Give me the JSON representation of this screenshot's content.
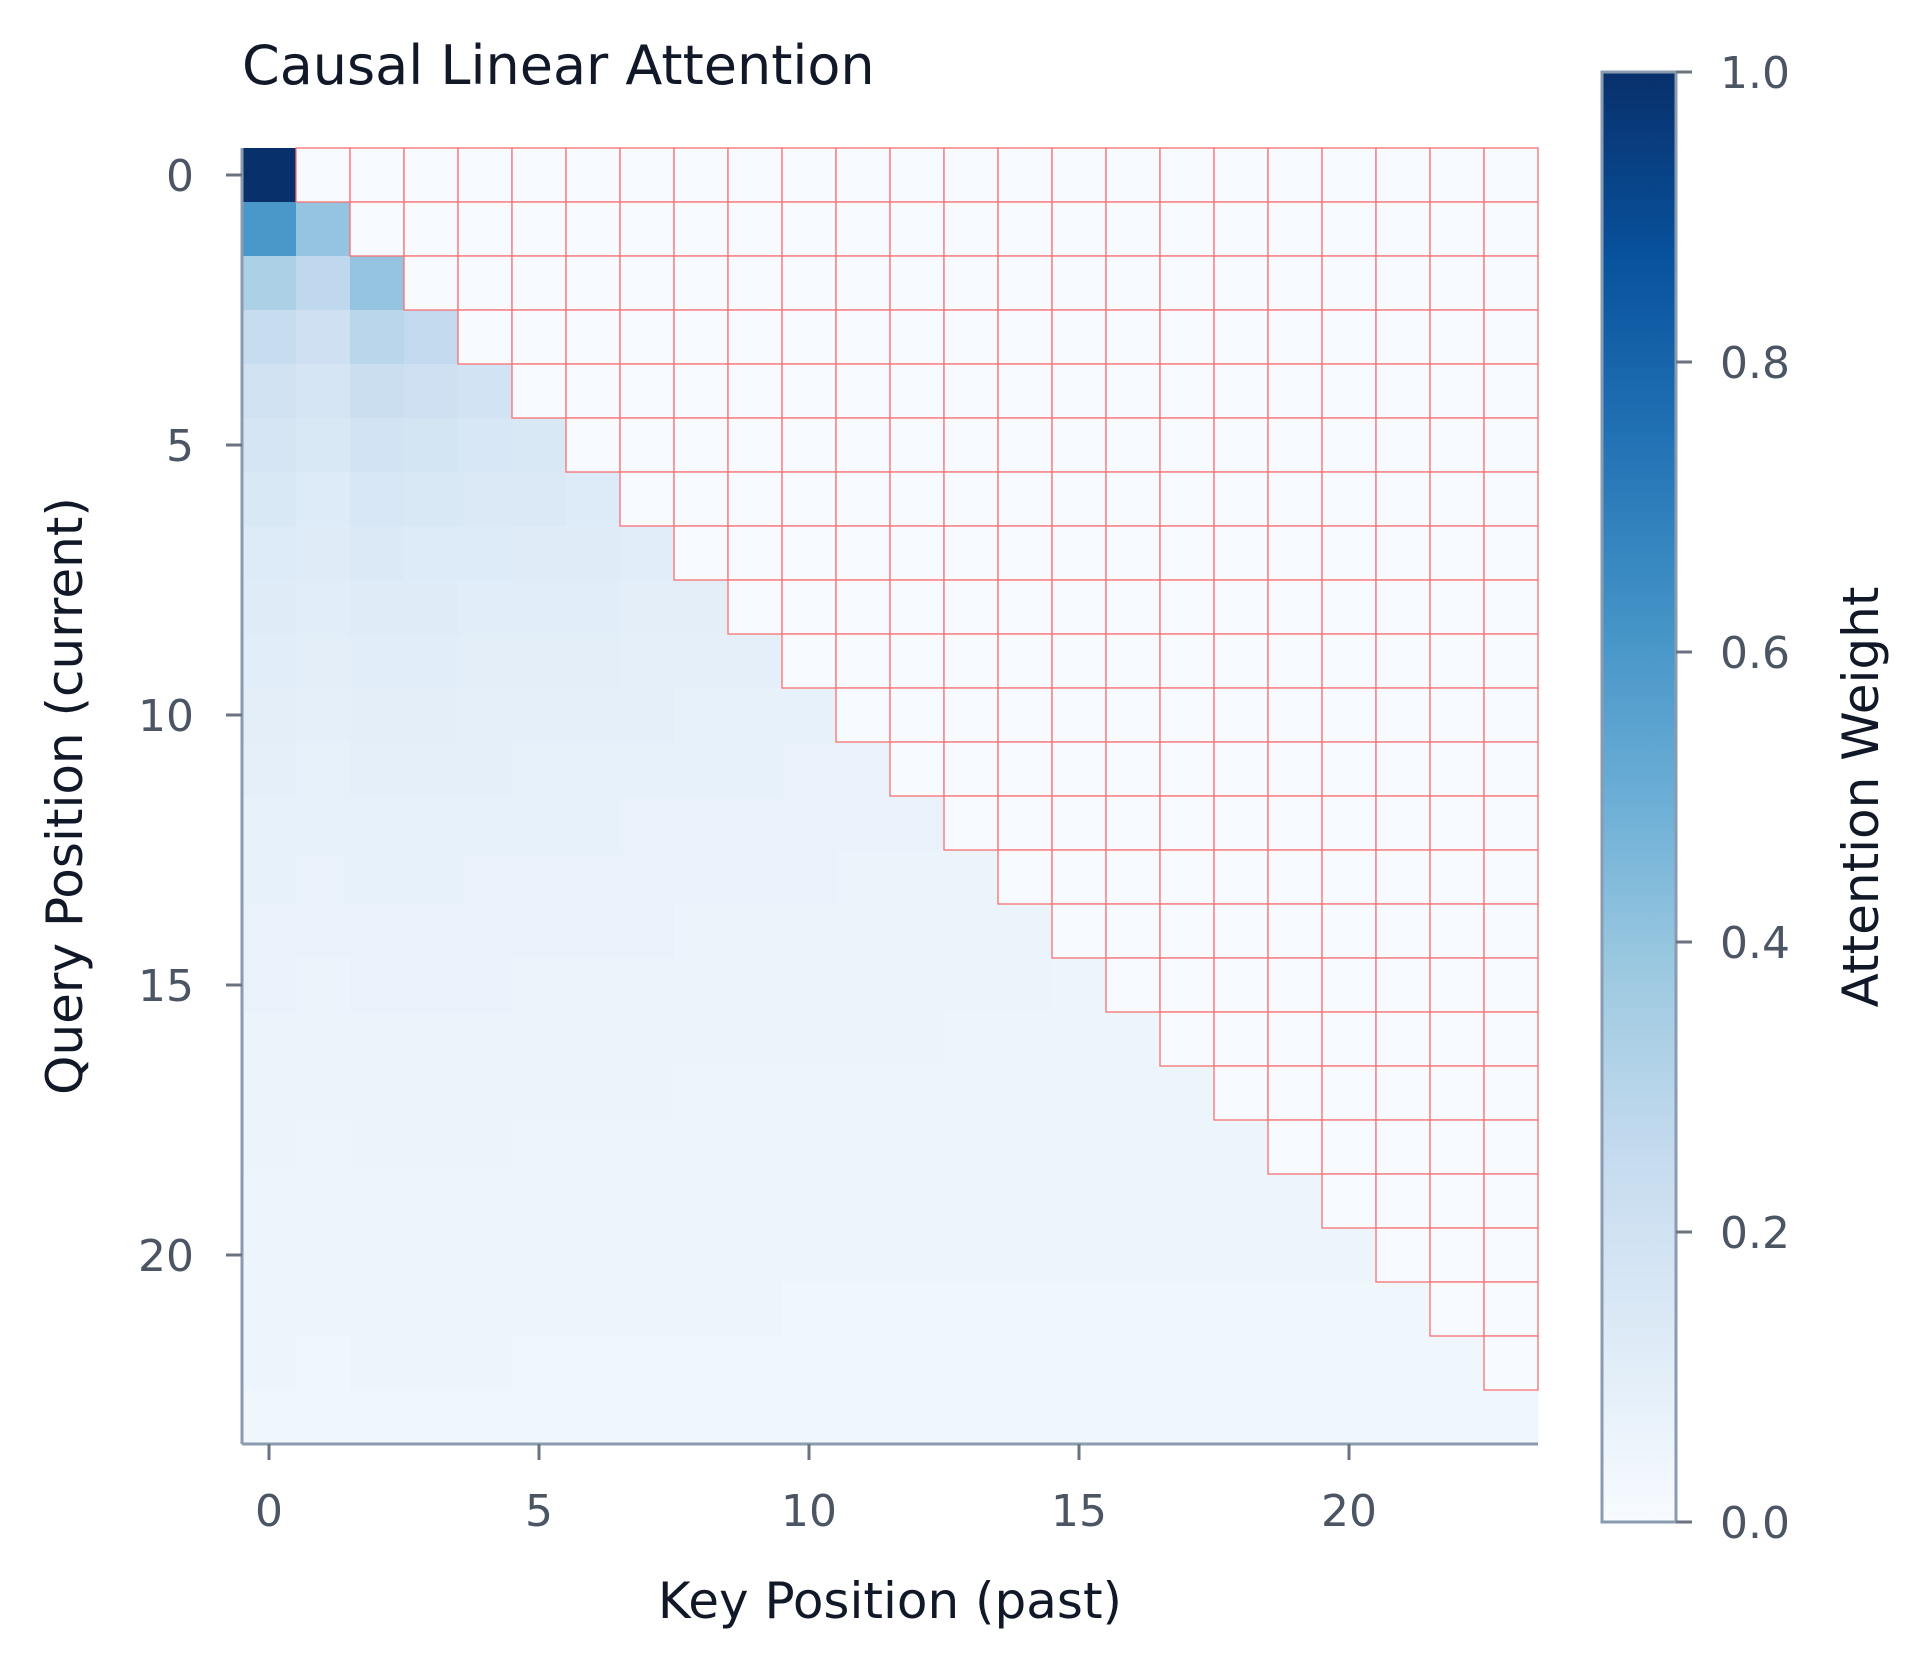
{
  "chart_data": {
    "type": "heatmap",
    "title": "Causal Linear Attention",
    "xlabel": "Key Position (past)",
    "ylabel": "Query Position (current)",
    "colorbar_label": "Attention Weight",
    "size": 24,
    "x_ticks": [
      0,
      5,
      10,
      15,
      20
    ],
    "y_ticks": [
      0,
      5,
      10,
      15,
      20
    ],
    "color_range": [
      0.0,
      1.0
    ],
    "colorbar_ticks": [
      "0.0",
      "0.2",
      "0.4",
      "0.6",
      "0.8",
      "1.0"
    ],
    "colormap": "Blues",
    "mask": "upper triangle (k > q) masked, outlined in red",
    "mask_color": "#f87171",
    "rows": [
      [
        1.0
      ],
      [
        0.6,
        0.4
      ],
      [
        0.33,
        0.27,
        0.4
      ],
      [
        0.24,
        0.21,
        0.29,
        0.26
      ],
      [
        0.2,
        0.17,
        0.23,
        0.21,
        0.19
      ],
      [
        0.17,
        0.15,
        0.19,
        0.18,
        0.16,
        0.15
      ],
      [
        0.15,
        0.13,
        0.16,
        0.15,
        0.14,
        0.14,
        0.13
      ],
      [
        0.13,
        0.12,
        0.14,
        0.13,
        0.13,
        0.12,
        0.12,
        0.11
      ],
      [
        0.12,
        0.11,
        0.12,
        0.12,
        0.11,
        0.11,
        0.11,
        0.1,
        0.1
      ],
      [
        0.11,
        0.1,
        0.11,
        0.11,
        0.1,
        0.1,
        0.1,
        0.09,
        0.09,
        0.09
      ],
      [
        0.1,
        0.09,
        0.1,
        0.1,
        0.09,
        0.09,
        0.09,
        0.09,
        0.08,
        0.08,
        0.08
      ],
      [
        0.09,
        0.08,
        0.09,
        0.09,
        0.09,
        0.08,
        0.08,
        0.08,
        0.08,
        0.08,
        0.07,
        0.07
      ],
      [
        0.08,
        0.08,
        0.08,
        0.08,
        0.08,
        0.08,
        0.08,
        0.07,
        0.07,
        0.07,
        0.07,
        0.07,
        0.07
      ],
      [
        0.08,
        0.07,
        0.08,
        0.08,
        0.07,
        0.07,
        0.07,
        0.07,
        0.07,
        0.07,
        0.07,
        0.06,
        0.06,
        0.06
      ],
      [
        0.07,
        0.07,
        0.07,
        0.07,
        0.07,
        0.07,
        0.07,
        0.07,
        0.06,
        0.06,
        0.06,
        0.06,
        0.06,
        0.06,
        0.06
      ],
      [
        0.07,
        0.06,
        0.07,
        0.07,
        0.07,
        0.06,
        0.06,
        0.06,
        0.06,
        0.06,
        0.06,
        0.06,
        0.06,
        0.06,
        0.06,
        0.05
      ],
      [
        0.06,
        0.06,
        0.06,
        0.06,
        0.06,
        0.06,
        0.06,
        0.06,
        0.06,
        0.06,
        0.06,
        0.06,
        0.06,
        0.05,
        0.05,
        0.05,
        0.05
      ],
      [
        0.06,
        0.06,
        0.06,
        0.06,
        0.06,
        0.06,
        0.06,
        0.06,
        0.05,
        0.05,
        0.05,
        0.05,
        0.05,
        0.05,
        0.05,
        0.05,
        0.05,
        0.05
      ],
      [
        0.06,
        0.05,
        0.06,
        0.06,
        0.06,
        0.05,
        0.05,
        0.05,
        0.05,
        0.05,
        0.05,
        0.05,
        0.05,
        0.05,
        0.05,
        0.05,
        0.05,
        0.05,
        0.05
      ],
      [
        0.05,
        0.05,
        0.05,
        0.05,
        0.05,
        0.05,
        0.05,
        0.05,
        0.05,
        0.05,
        0.05,
        0.05,
        0.05,
        0.05,
        0.05,
        0.05,
        0.05,
        0.05,
        0.05,
        0.05
      ],
      [
        0.05,
        0.05,
        0.05,
        0.05,
        0.05,
        0.05,
        0.05,
        0.05,
        0.05,
        0.05,
        0.05,
        0.05,
        0.05,
        0.05,
        0.05,
        0.05,
        0.05,
        0.05,
        0.05,
        0.05,
        0.05
      ],
      [
        0.05,
        0.05,
        0.05,
        0.05,
        0.05,
        0.05,
        0.05,
        0.05,
        0.05,
        0.05,
        0.04,
        0.04,
        0.04,
        0.04,
        0.04,
        0.04,
        0.04,
        0.04,
        0.04,
        0.04,
        0.04,
        0.04
      ],
      [
        0.05,
        0.04,
        0.05,
        0.05,
        0.05,
        0.04,
        0.04,
        0.04,
        0.04,
        0.04,
        0.04,
        0.04,
        0.04,
        0.04,
        0.04,
        0.04,
        0.04,
        0.04,
        0.04,
        0.04,
        0.04,
        0.04,
        0.04
      ],
      [
        0.04,
        0.04,
        0.04,
        0.04,
        0.04,
        0.04,
        0.04,
        0.04,
        0.04,
        0.04,
        0.04,
        0.04,
        0.04,
        0.04,
        0.04,
        0.04,
        0.04,
        0.04,
        0.04,
        0.04,
        0.04,
        0.04,
        0.04,
        0.04
      ]
    ]
  }
}
